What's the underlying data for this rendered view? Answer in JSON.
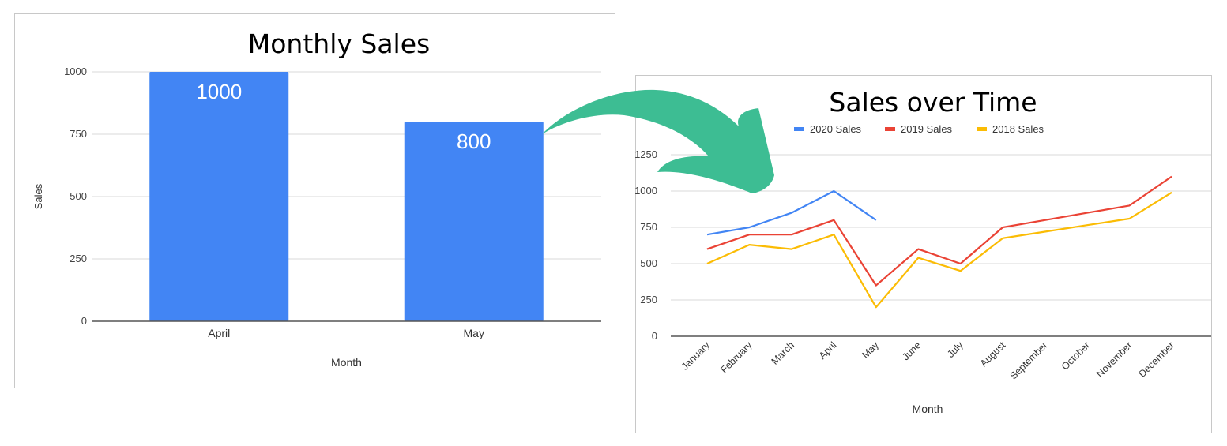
{
  "left_chart": {
    "title": "Monthly Sales",
    "xlabel": "Month",
    "ylabel": "Sales",
    "yticks": [
      "0",
      "250",
      "500",
      "750",
      "1000"
    ],
    "categories": [
      "April",
      "May"
    ],
    "bar_labels": [
      "1000",
      "800"
    ],
    "bar_color": "#4285f4"
  },
  "right_chart": {
    "title": "Sales over Time",
    "xlabel": "Month",
    "yticks": [
      "0",
      "250",
      "500",
      "750",
      "1000",
      "1250"
    ],
    "legend": [
      {
        "label": "2020 Sales",
        "color": "#4285f4"
      },
      {
        "label": "2019 Sales",
        "color": "#ea4335"
      },
      {
        "label": "2018 Sales",
        "color": "#fbbc04"
      }
    ],
    "categories": [
      "January",
      "February",
      "March",
      "April",
      "May",
      "June",
      "July",
      "August",
      "September",
      "October",
      "November",
      "December"
    ]
  },
  "arrow": {
    "color": "#3dbd93"
  },
  "chart_data": [
    {
      "type": "bar",
      "title": "Monthly Sales",
      "xlabel": "Month",
      "ylabel": "Sales",
      "categories": [
        "April",
        "May"
      ],
      "values": [
        1000,
        800
      ],
      "data_labels": [
        "1000",
        "800"
      ],
      "ylim": [
        0,
        1000
      ],
      "yticks": [
        0,
        250,
        500,
        750,
        1000
      ],
      "grid": true,
      "legend": null,
      "colors": [
        "#4285f4"
      ]
    },
    {
      "type": "line",
      "title": "Sales over Time",
      "xlabel": "Month",
      "ylabel": "",
      "categories": [
        "January",
        "February",
        "March",
        "April",
        "May",
        "June",
        "July",
        "August",
        "September",
        "October",
        "November",
        "December"
      ],
      "series": [
        {
          "name": "2020 Sales",
          "color": "#4285f4",
          "values": [
            700,
            750,
            850,
            1000,
            800,
            null,
            null,
            null,
            null,
            null,
            null,
            null
          ]
        },
        {
          "name": "2019 Sales",
          "color": "#ea4335",
          "values": [
            600,
            700,
            700,
            800,
            350,
            600,
            500,
            750,
            800,
            850,
            900,
            1100
          ]
        },
        {
          "name": "2018 Sales",
          "color": "#fbbc04",
          "values": [
            500,
            630,
            600,
            700,
            200,
            540,
            450,
            675,
            720,
            765,
            810,
            990
          ]
        }
      ],
      "ylim": [
        0,
        1250
      ],
      "yticks": [
        0,
        250,
        500,
        750,
        1000,
        1250
      ],
      "grid": true,
      "legend_position": "top",
      "xtick_rotation": -45
    }
  ]
}
